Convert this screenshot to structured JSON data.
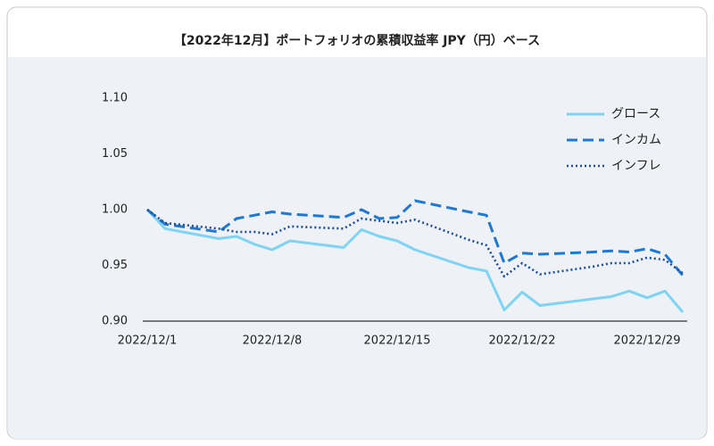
{
  "chart_data": {
    "type": "line",
    "title": "【2022年12月】ポートフォリオの累積収益率 JPY（円）ベース",
    "x": [
      "2022/12/1",
      "2022/12/2",
      "2022/12/5",
      "2022/12/6",
      "2022/12/7",
      "2022/12/8",
      "2022/12/9",
      "2022/12/12",
      "2022/12/13",
      "2022/12/14",
      "2022/12/15",
      "2022/12/16",
      "2022/12/19",
      "2022/12/20",
      "2022/12/21",
      "2022/12/22",
      "2022/12/23",
      "2022/12/26",
      "2022/12/27",
      "2022/12/28",
      "2022/12/29",
      "2022/12/30",
      "2022/12/31"
    ],
    "series": [
      {
        "name": "グロース",
        "color": "#7fd3f3",
        "style": "solid",
        "values": [
          1.0,
          0.983,
          0.974,
          0.976,
          0.969,
          0.964,
          0.972,
          0.966,
          0.982,
          0.976,
          0.972,
          0.964,
          0.948,
          0.945,
          0.91,
          0.926,
          0.914,
          0.92,
          0.922,
          0.927,
          0.921,
          0.927,
          0.908
        ]
      },
      {
        "name": "インカム",
        "color": "#1f78d1",
        "style": "dashed",
        "values": [
          1.0,
          0.987,
          0.98,
          0.992,
          0.995,
          0.998,
          0.996,
          0.993,
          1.0,
          0.992,
          0.993,
          1.008,
          0.998,
          0.995,
          0.952,
          0.961,
          0.96,
          0.962,
          0.963,
          0.962,
          0.965,
          0.96,
          0.941
        ]
      },
      {
        "name": "インフレ",
        "color": "#1f4e9c",
        "style": "dotted",
        "values": [
          1.0,
          0.988,
          0.983,
          0.98,
          0.98,
          0.978,
          0.985,
          0.983,
          0.992,
          0.99,
          0.988,
          0.991,
          0.973,
          0.968,
          0.94,
          0.952,
          0.942,
          0.949,
          0.952,
          0.952,
          0.957,
          0.955,
          0.943
        ]
      }
    ],
    "xlim": [
      "2022/12/1",
      "2022/12/31"
    ],
    "xticks": [
      "2022/12/1",
      "2022/12/8",
      "2022/12/15",
      "2022/12/22",
      "2022/12/29"
    ],
    "ylim": [
      0.9,
      1.1
    ],
    "yticks": [
      {
        "value": 0.9,
        "label": "0.90"
      },
      {
        "value": 0.95,
        "label": "0.95"
      },
      {
        "value": 1.0,
        "label": "1.00"
      },
      {
        "value": 1.05,
        "label": "1.05"
      },
      {
        "value": 1.1,
        "label": "1.10"
      }
    ],
    "grid": false,
    "legend": "top-right"
  }
}
